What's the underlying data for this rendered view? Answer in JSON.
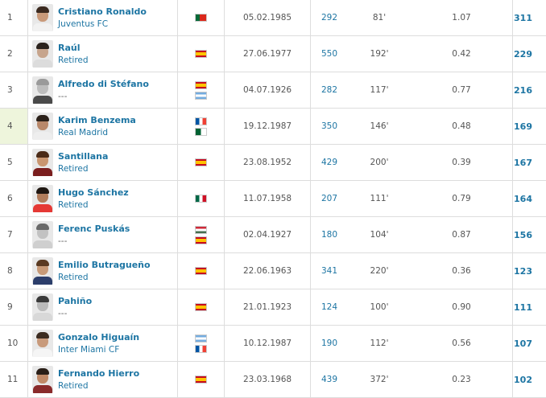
{
  "rows": [
    {
      "rank": "1",
      "name": "Cristiano Ronaldo",
      "club": "Juventus FC",
      "flags": [
        "portugal-flag"
      ],
      "dob": "05.02.1985",
      "apps": "292",
      "mpg": "81'",
      "gpg": "1.07",
      "goals": "311",
      "colors": {
        "skin": "#c99a7a",
        "hair": "#3b2a20",
        "shirt": "#f2f2f2"
      }
    },
    {
      "rank": "2",
      "name": "Raúl",
      "club": "Retired",
      "flags": [
        "spain-flag"
      ],
      "dob": "27.06.1977",
      "apps": "550",
      "mpg": "192'",
      "gpg": "0.42",
      "goals": "229",
      "colors": {
        "skin": "#c7a58d",
        "hair": "#2a221c",
        "shirt": "#dcdcdc"
      }
    },
    {
      "rank": "3",
      "name": "Alfredo di Stéfano",
      "club": "---",
      "flags": [
        "spain-flag",
        "argentina-flag"
      ],
      "dob": "04.07.1926",
      "apps": "282",
      "mpg": "117'",
      "gpg": "0.77",
      "goals": "216",
      "colors": {
        "skin": "#bdbdbd",
        "hair": "#9a9a9a",
        "shirt": "#4a4a4a"
      }
    },
    {
      "rank": "4",
      "name": "Karim Benzema",
      "club": "Real Madrid",
      "flags": [
        "france-flag",
        "algeria-flag"
      ],
      "dob": "19.12.1987",
      "apps": "350",
      "mpg": "146'",
      "gpg": "0.48",
      "goals": "169",
      "colors": {
        "skin": "#b8886a",
        "hair": "#2b211a",
        "shirt": "#eeeeee"
      }
    },
    {
      "rank": "5",
      "name": "Santillana",
      "club": "Retired",
      "flags": [
        "spain-flag"
      ],
      "dob": "23.08.1952",
      "apps": "429",
      "mpg": "200'",
      "gpg": "0.39",
      "goals": "167",
      "colors": {
        "skin": "#c99670",
        "hair": "#4b2b18",
        "shirt": "#7b1e1e"
      }
    },
    {
      "rank": "6",
      "name": "Hugo Sánchez",
      "club": "Retired",
      "flags": [
        "mexico-flag"
      ],
      "dob": "11.07.1958",
      "apps": "207",
      "mpg": "111'",
      "gpg": "0.79",
      "goals": "164",
      "colors": {
        "skin": "#b17d5c",
        "hair": "#1f1712",
        "shirt": "#e53935"
      }
    },
    {
      "rank": "7",
      "name": "Ferenc Puskás",
      "club": "---",
      "flags": [
        "hungary-flag",
        "spain-flag"
      ],
      "dob": "02.04.1927",
      "apps": "180",
      "mpg": "104'",
      "gpg": "0.87",
      "goals": "156",
      "colors": {
        "skin": "#c2c2c2",
        "hair": "#6a6a6a",
        "shirt": "#cfcfcf"
      }
    },
    {
      "rank": "8",
      "name": "Emilio Butragueño",
      "club": "Retired",
      "flags": [
        "spain-flag"
      ],
      "dob": "22.06.1963",
      "apps": "341",
      "mpg": "220'",
      "gpg": "0.36",
      "goals": "123",
      "colors": {
        "skin": "#c79a78",
        "hair": "#5a3a22",
        "shirt": "#2c3e6b"
      }
    },
    {
      "rank": "9",
      "name": "Pahiño",
      "club": "---",
      "flags": [
        "spain-flag"
      ],
      "dob": "21.01.1923",
      "apps": "124",
      "mpg": "100'",
      "gpg": "0.90",
      "goals": "111",
      "colors": {
        "skin": "#bababa",
        "hair": "#3a3a3a",
        "shirt": "#d8d8d8"
      }
    },
    {
      "rank": "10",
      "name": "Gonzalo Higuaín",
      "club": "Inter Miami CF",
      "flags": [
        "argentina-flag",
        "france-flag"
      ],
      "dob": "10.12.1987",
      "apps": "190",
      "mpg": "112'",
      "gpg": "0.56",
      "goals": "107",
      "colors": {
        "skin": "#c89a7b",
        "hair": "#3b2b20",
        "shirt": "#f5f5f5"
      }
    },
    {
      "rank": "11",
      "name": "Fernando Hierro",
      "club": "Retired",
      "flags": [
        "spain-flag"
      ],
      "dob": "23.03.1968",
      "apps": "439",
      "mpg": "372'",
      "gpg": "0.23",
      "goals": "102",
      "colors": {
        "skin": "#c08a68",
        "hair": "#2a1f18",
        "shirt": "#8a2b2b"
      }
    }
  ],
  "highlight_row": "4",
  "theme": {
    "link": "#1d75a3",
    "border": "#dddddd",
    "highlight": "#eef5dc"
  }
}
